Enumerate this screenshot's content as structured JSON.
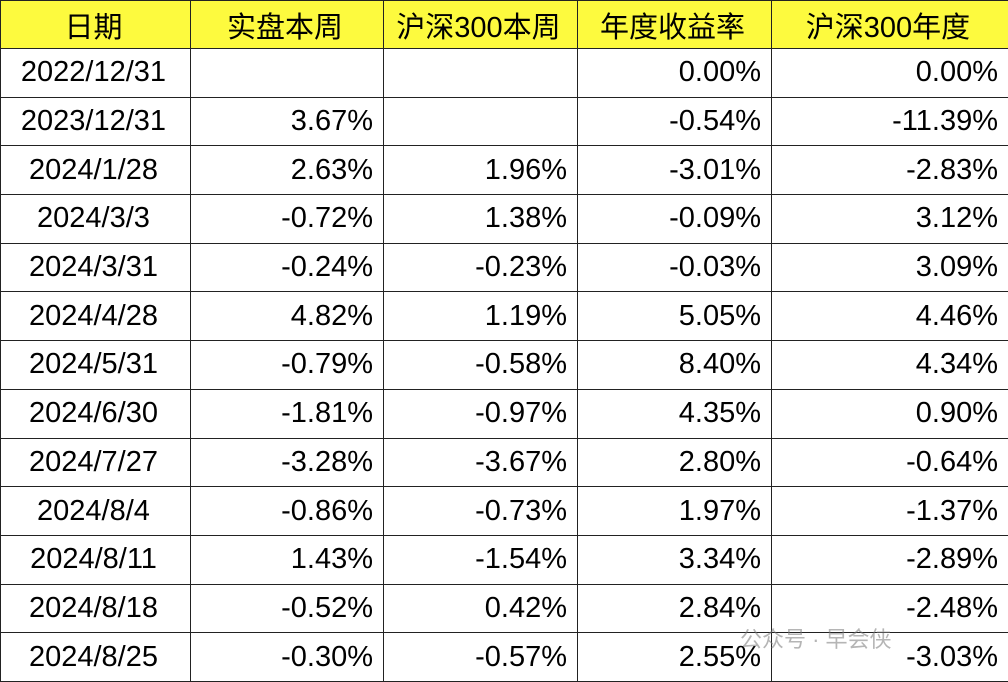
{
  "table": {
    "header": [
      "日期",
      "实盘本周",
      "沪深300本周",
      "年度收益率",
      "沪深300年度"
    ],
    "rows": [
      [
        "2022/12/31",
        null,
        null,
        "0.00%",
        "0.00%"
      ],
      [
        "2023/12/31",
        "3.67%",
        null,
        "-0.54%",
        "-11.39%"
      ],
      [
        "2024/1/28",
        "2.63%",
        "1.96%",
        "-3.01%",
        "-2.83%"
      ],
      [
        "2024/3/3",
        "-0.72%",
        "1.38%",
        "-0.09%",
        "3.12%"
      ],
      [
        "2024/3/31",
        "-0.24%",
        "-0.23%",
        "-0.03%",
        "3.09%"
      ],
      [
        "2024/4/28",
        "4.82%",
        "1.19%",
        "5.05%",
        "4.46%"
      ],
      [
        "2024/5/31",
        "-0.79%",
        "-0.58%",
        "8.40%",
        "4.34%"
      ],
      [
        "2024/6/30",
        "-1.81%",
        "-0.97%",
        "4.35%",
        "0.90%"
      ],
      [
        "2024/7/27",
        "-3.28%",
        "-3.67%",
        "2.80%",
        "-0.64%"
      ],
      [
        "2024/8/4",
        "-0.86%",
        "-0.73%",
        "1.97%",
        "-1.37%"
      ],
      [
        "2024/8/11",
        "1.43%",
        "-1.54%",
        "3.34%",
        "-2.89%"
      ],
      [
        "2024/8/18",
        "-0.52%",
        "0.42%",
        "2.84%",
        "-2.48%"
      ],
      [
        "2024/8/25",
        "-0.30%",
        "-0.57%",
        "2.55%",
        "-3.03%"
      ]
    ]
  },
  "watermark": "公众号 · 早会侠"
}
